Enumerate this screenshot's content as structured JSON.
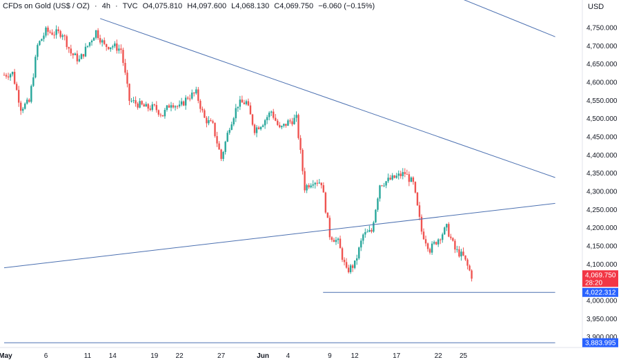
{
  "header": {
    "symbol": "CFDs on Gold (US$ / OZ)",
    "timeframe": "4h",
    "source": "TVC",
    "open": "O4,075.810",
    "high": "H4,097.600",
    "low": "L4,068.130",
    "close": "C4,069.750",
    "change": "−6.060 (−0.15%)"
  },
  "currency": "USD",
  "colors": {
    "up": "#26a69a",
    "down": "#ef5350",
    "line": "#4a6fb0",
    "axis": "#131722",
    "label_blue": "#2962ff"
  },
  "chart_data": {
    "type": "candlestick",
    "ylim": [
      3880,
      4810
    ],
    "y_ticks": [
      "4,750.000",
      "4,700.000",
      "4,650.000",
      "4,600.000",
      "4,550.000",
      "4,500.000",
      "4,450.000",
      "4,400.000",
      "4,350.000",
      "4,300.000",
      "4,250.000",
      "4,200.000",
      "4,150.000",
      "4,100.000",
      "4,050.000",
      "4,000.000",
      "3,950.000",
      "3,900.000"
    ],
    "y_tick_values": [
      4750,
      4700,
      4650,
      4600,
      4550,
      4500,
      4450,
      4400,
      4350,
      4300,
      4250,
      4200,
      4150,
      4100,
      4050,
      4000,
      3950,
      3900
    ],
    "x_ticks": [
      {
        "label": "May",
        "day": 0,
        "bold": true
      },
      {
        "label": "6",
        "day": 5
      },
      {
        "label": "11",
        "day": 10
      },
      {
        "label": "14",
        "day": 13
      },
      {
        "label": "19",
        "day": 18
      },
      {
        "label": "22",
        "day": 21
      },
      {
        "label": "27",
        "day": 26
      },
      {
        "label": "Jun",
        "day": 31,
        "bold": true
      },
      {
        "label": "4",
        "day": 34
      },
      {
        "label": "9",
        "day": 39
      },
      {
        "label": "12",
        "day": 42
      },
      {
        "label": "17",
        "day": 47
      },
      {
        "label": "22",
        "day": 52
      },
      {
        "label": "25",
        "day": 55
      }
    ],
    "price_path": [
      [
        0,
        4620
      ],
      [
        1,
        4625
      ],
      [
        2,
        4530
      ],
      [
        3,
        4545
      ],
      [
        4,
        4700
      ],
      [
        5,
        4740
      ],
      [
        6,
        4735
      ],
      [
        7,
        4735
      ],
      [
        8,
        4680
      ],
      [
        9,
        4660
      ],
      [
        10,
        4700
      ],
      [
        11,
        4740
      ],
      [
        12,
        4700
      ],
      [
        13,
        4700
      ],
      [
        14,
        4690
      ],
      [
        15,
        4550
      ],
      [
        16,
        4540
      ],
      [
        17,
        4530
      ],
      [
        18,
        4530
      ],
      [
        19,
        4510
      ],
      [
        20,
        4545
      ],
      [
        21,
        4530
      ],
      [
        22,
        4560
      ],
      [
        23,
        4570
      ],
      [
        24,
        4500
      ],
      [
        25,
        4480
      ],
      [
        26,
        4390
      ],
      [
        27,
        4480
      ],
      [
        28,
        4540
      ],
      [
        29,
        4545
      ],
      [
        30,
        4470
      ],
      [
        31,
        4490
      ],
      [
        32,
        4520
      ],
      [
        33,
        4470
      ],
      [
        34,
        4490
      ],
      [
        35,
        4500
      ],
      [
        36,
        4310
      ],
      [
        37,
        4330
      ],
      [
        38,
        4325
      ],
      [
        39,
        4180
      ],
      [
        40,
        4160
      ],
      [
        41,
        4080
      ],
      [
        42,
        4100
      ],
      [
        43,
        4180
      ],
      [
        44,
        4190
      ],
      [
        45,
        4320
      ],
      [
        46,
        4330
      ],
      [
        47,
        4340
      ],
      [
        48,
        4350
      ],
      [
        49,
        4320
      ],
      [
        50,
        4190
      ],
      [
        51,
        4140
      ],
      [
        52,
        4170
      ],
      [
        53,
        4200
      ],
      [
        54,
        4140
      ],
      [
        55,
        4120
      ],
      [
        56,
        4068
      ]
    ],
    "trendlines": [
      {
        "name": "upper-channel",
        "x1": 44.5,
        "y1": 4925,
        "x2": 66,
        "y2": 4725
      },
      {
        "name": "descending-resistance",
        "x1": 11.5,
        "y1": 4775,
        "x2": 66,
        "y2": 4338
      },
      {
        "name": "rising-support",
        "x1": 0,
        "y1": 4090,
        "x2": 66,
        "y2": 4267
      },
      {
        "name": "horizontal-4022",
        "x1": 38.2,
        "y1": 4022.312,
        "x2": 66,
        "y2": 4022.312
      },
      {
        "name": "horizontal-3884",
        "x1": 0,
        "y1": 3883.995,
        "x2": 66,
        "y2": 3883.995
      }
    ],
    "badges": [
      {
        "label": "4,069.750",
        "sub": "28:20",
        "value": 4069.75,
        "color": "#f23645"
      },
      {
        "label": "4,022.312",
        "value": 4022.312,
        "color": "#2962ff"
      },
      {
        "label": "3,883.995",
        "value": 3883.995,
        "color": "#2962ff"
      }
    ]
  }
}
